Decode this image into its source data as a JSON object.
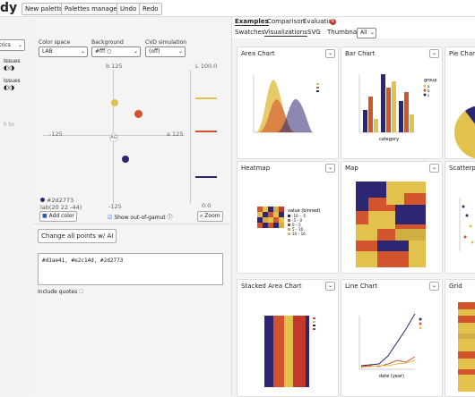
{
  "toolbar": {
    "brand": "dy",
    "new_palette": "New palette",
    "palettes_manager": "Palettes manager",
    "undo": "Undo",
    "redo": "Redo"
  },
  "left": {
    "metrics": "trics",
    "issues1": "Issues",
    "issues2": "Issues",
    "dots": "◐◑",
    "note": "h to"
  },
  "controls": {
    "color_space_label": "Color space",
    "color_space_value": "LAB",
    "background_label": "Background",
    "background_value": "#fff",
    "cvd_label": "CVD simulation",
    "cvd_value": "(off)"
  },
  "plot": {
    "b_top": "b 125",
    "l_top": "L 100.0",
    "a_left": "-125",
    "a_right": "a 125",
    "origin": "AG",
    "b_bottom": "-125",
    "l_bottom": "0.0"
  },
  "selected": {
    "hex": "#2d2773",
    "lab": "lab(20 22 -44)"
  },
  "buttons": {
    "add_color": "Add color",
    "show_gamut": "Show out-of-gamut",
    "zoom": "Zoom",
    "change_points": "Change all points w/ AI",
    "include_quotes": "Include quotes"
  },
  "textarea": "#d1ae41, #e2c14d, #2d2773",
  "colors": {
    "yellow": "#e2c14d",
    "orange": "#d1ae41",
    "red": "#d2542d",
    "navy": "#2d2773"
  },
  "right": {
    "tabs": [
      "Examples",
      "Comparison",
      "Evaluation"
    ],
    "eval_badge": "6",
    "subtabs": [
      "Swatches",
      "Visualizations",
      "SVG",
      "Thumbnail"
    ],
    "thumb_value": "All",
    "cards": [
      {
        "title": "Area Chart"
      },
      {
        "title": "Bar Chart"
      },
      {
        "title": "Pie Chart"
      },
      {
        "title": "Heatmap"
      },
      {
        "title": "Map"
      },
      {
        "title": "Scatterplot"
      },
      {
        "title": "Stacked Area Chart"
      },
      {
        "title": "Line Chart"
      },
      {
        "title": "Grid"
      }
    ],
    "bar_legend": {
      "title": "group",
      "items": [
        "a",
        "b",
        "c"
      ]
    },
    "bar_axis": "category",
    "heat_legend": {
      "title": "value (binned)",
      "items": [
        "-10 – -5",
        "-5 – 0",
        "0 – 5",
        "5 – 10",
        "10 – 16"
      ]
    },
    "line_axis": "date (year)"
  }
}
